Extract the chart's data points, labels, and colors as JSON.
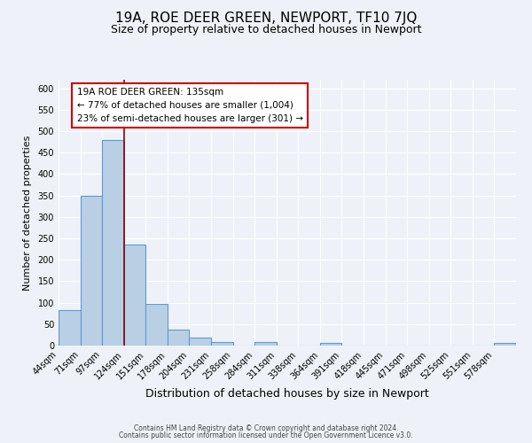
{
  "title": "19A, ROE DEER GREEN, NEWPORT, TF10 7JQ",
  "subtitle": "Size of property relative to detached houses in Newport",
  "xlabel": "Distribution of detached houses by size in Newport",
  "ylabel": "Number of detached properties",
  "bin_labels": [
    "44sqm",
    "71sqm",
    "97sqm",
    "124sqm",
    "151sqm",
    "178sqm",
    "204sqm",
    "231sqm",
    "258sqm",
    "284sqm",
    "311sqm",
    "338sqm",
    "364sqm",
    "391sqm",
    "418sqm",
    "445sqm",
    "471sqm",
    "498sqm",
    "525sqm",
    "551sqm",
    "578sqm"
  ],
  "bar_values": [
    83,
    350,
    480,
    235,
    97,
    38,
    18,
    8,
    0,
    8,
    0,
    0,
    6,
    0,
    0,
    0,
    0,
    0,
    0,
    0,
    6
  ],
  "bar_color": "#b8cfe4",
  "bar_edge_color": "#5b9bd5",
  "ylim": [
    0,
    620
  ],
  "yticks": [
    0,
    50,
    100,
    150,
    200,
    250,
    300,
    350,
    400,
    450,
    500,
    550,
    600
  ],
  "red_line_x": 3,
  "annotation_title": "19A ROE DEER GREEN: 135sqm",
  "annotation_line1": "← 77% of detached houses are smaller (1,004)",
  "annotation_line2": "23% of semi-detached houses are larger (301) →",
  "footer_line1": "Contains HM Land Registry data © Crown copyright and database right 2024.",
  "footer_line2": "Contains public sector information licensed under the Open Government Licence v3.0.",
  "background_color": "#eef2f8",
  "grid_color": "#ffffff",
  "title_fontsize": 11,
  "subtitle_fontsize": 9,
  "tick_fontsize": 7,
  "ylabel_fontsize": 8,
  "xlabel_fontsize": 9
}
